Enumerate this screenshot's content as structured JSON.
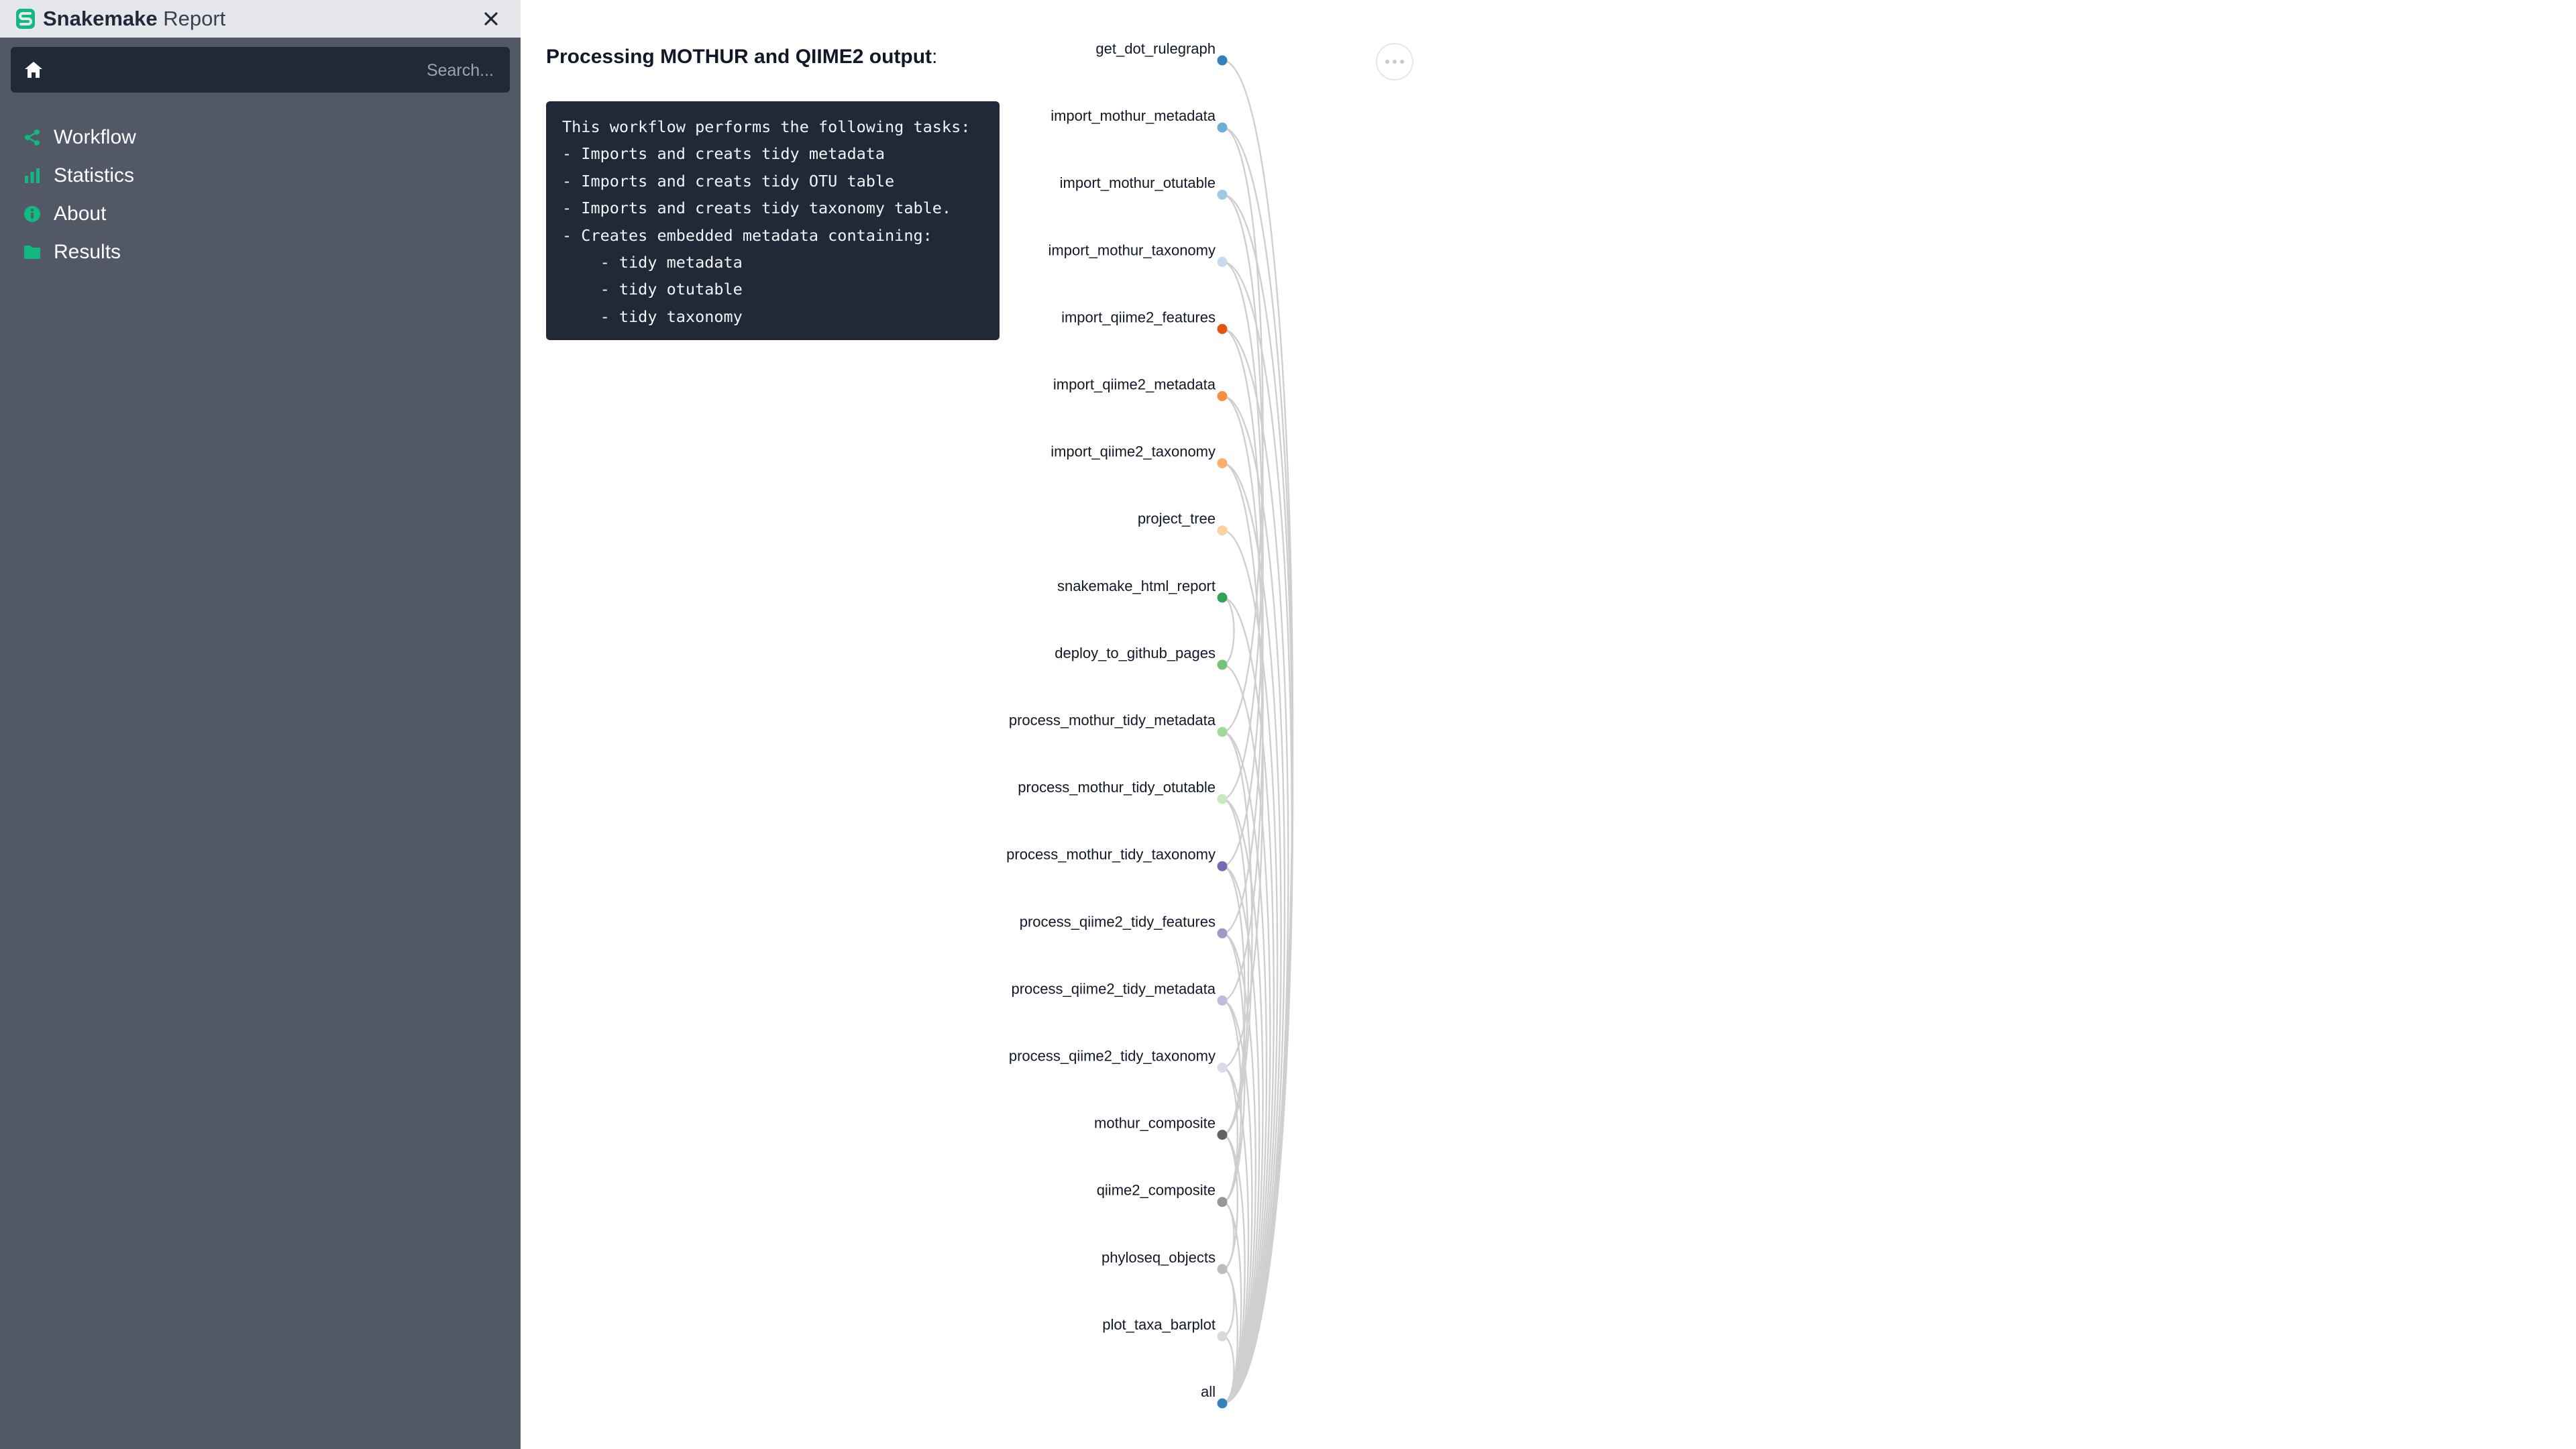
{
  "app": {
    "title_bold": "Snakemake",
    "title_light": "Report"
  },
  "search": {
    "placeholder": "Search..."
  },
  "nav": {
    "items": [
      {
        "label": "Workflow",
        "icon": "share-icon"
      },
      {
        "label": "Statistics",
        "icon": "bar-chart-icon"
      },
      {
        "label": "About",
        "icon": "info-icon"
      },
      {
        "label": "Results",
        "icon": "folder-icon"
      }
    ]
  },
  "colors": {
    "accent": "#10b981",
    "sidebar": "#525866",
    "dark_panel": "#1f2937"
  },
  "main": {
    "title": "Processing MOTHUR and QIIME2 output",
    "title_suffix": ":",
    "description_lines": [
      "This workflow performs the following tasks:",
      "- Imports and creats tidy metadata",
      "- Imports and creats tidy OTU table",
      "- Imports and creats tidy taxonomy table.",
      "- Creates embedded metadata containing:",
      "    - tidy metadata",
      "    - tidy otutable",
      "    - tidy taxonomy"
    ]
  },
  "rulegraph": {
    "nodes": [
      {
        "name": "get_dot_rulegraph",
        "color": "#3182bd"
      },
      {
        "name": "import_mothur_metadata",
        "color": "#6baed6"
      },
      {
        "name": "import_mothur_otutable",
        "color": "#9ecae1"
      },
      {
        "name": "import_mothur_taxonomy",
        "color": "#c6dbef"
      },
      {
        "name": "import_qiime2_features",
        "color": "#e6550d"
      },
      {
        "name": "import_qiime2_metadata",
        "color": "#fd8d3c"
      },
      {
        "name": "import_qiime2_taxonomy",
        "color": "#fdae6b"
      },
      {
        "name": "project_tree",
        "color": "#fdd0a2"
      },
      {
        "name": "snakemake_html_report",
        "color": "#31a354"
      },
      {
        "name": "deploy_to_github_pages",
        "color": "#74c476"
      },
      {
        "name": "process_mothur_tidy_metadata",
        "color": "#a1d99b"
      },
      {
        "name": "process_mothur_tidy_otutable",
        "color": "#c7e9c0"
      },
      {
        "name": "process_mothur_tidy_taxonomy",
        "color": "#756bb1"
      },
      {
        "name": "process_qiime2_tidy_features",
        "color": "#9e9ac8"
      },
      {
        "name": "process_qiime2_tidy_metadata",
        "color": "#bcbddc"
      },
      {
        "name": "process_qiime2_tidy_taxonomy",
        "color": "#dadaeb"
      },
      {
        "name": "mothur_composite",
        "color": "#636363"
      },
      {
        "name": "qiime2_composite",
        "color": "#969696"
      },
      {
        "name": "phyloseq_objects",
        "color": "#bdbdbd"
      },
      {
        "name": "plot_taxa_barplot",
        "color": "#d9d9d9"
      },
      {
        "name": "all",
        "color": "#3182bd"
      }
    ],
    "edges": [
      [
        0,
        20
      ],
      [
        1,
        10
      ],
      [
        2,
        11
      ],
      [
        3,
        12
      ],
      [
        4,
        13
      ],
      [
        5,
        14
      ],
      [
        6,
        15
      ],
      [
        7,
        20
      ],
      [
        8,
        9
      ],
      [
        8,
        20
      ],
      [
        9,
        20
      ],
      [
        10,
        16
      ],
      [
        11,
        16
      ],
      [
        12,
        16
      ],
      [
        13,
        17
      ],
      [
        14,
        17
      ],
      [
        15,
        17
      ],
      [
        16,
        18
      ],
      [
        17,
        18
      ],
      [
        18,
        19
      ],
      [
        19,
        20
      ],
      [
        10,
        20
      ],
      [
        11,
        20
      ],
      [
        12,
        20
      ],
      [
        13,
        20
      ],
      [
        14,
        20
      ],
      [
        15,
        20
      ],
      [
        16,
        20
      ],
      [
        17,
        20
      ],
      [
        18,
        20
      ],
      [
        1,
        20
      ],
      [
        2,
        20
      ],
      [
        3,
        20
      ],
      [
        4,
        20
      ],
      [
        5,
        20
      ],
      [
        6,
        20
      ]
    ]
  }
}
